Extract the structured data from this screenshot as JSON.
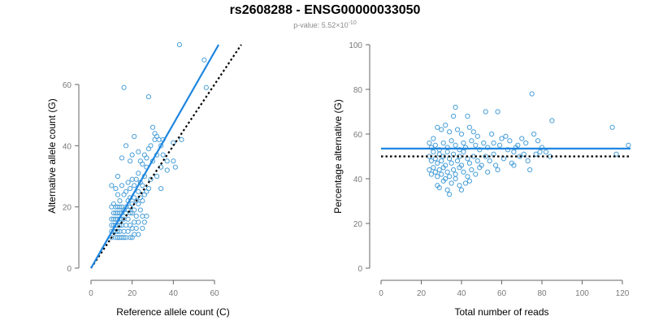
{
  "title": "rs2608288 - ENSG00000033050",
  "subtitle": {
    "text": "p-value: 5.52×10",
    "exponent": "-10"
  },
  "colors": {
    "points": "#4a9fd8",
    "fit_line": "#1f86e0",
    "reference_line": "#000000",
    "axis": "#666666"
  },
  "chart_data": [
    {
      "type": "scatter",
      "xlabel": "Reference allele count (C)",
      "ylabel": "Alternative allele count (G)",
      "xlim": [
        0,
        65
      ],
      "ylim": [
        0,
        72
      ],
      "xticks": [
        0,
        20,
        40,
        60
      ],
      "yticks": [
        0,
        20,
        40,
        60
      ],
      "grid": false,
      "fit_line": {
        "x": [
          0,
          62
        ],
        "y": [
          0,
          73
        ]
      },
      "reference_line": {
        "x": [
          0,
          73
        ],
        "y": [
          0,
          73
        ]
      },
      "points": [
        [
          43,
          73
        ],
        [
          55,
          68
        ],
        [
          16,
          59
        ],
        [
          56,
          59
        ],
        [
          28,
          56
        ],
        [
          30,
          46
        ],
        [
          31,
          44
        ],
        [
          32,
          43
        ],
        [
          31,
          42
        ],
        [
          33,
          42
        ],
        [
          35,
          42
        ],
        [
          21,
          43
        ],
        [
          44,
          42
        ],
        [
          29,
          40
        ],
        [
          40,
          41
        ],
        [
          17,
          40
        ],
        [
          34,
          40
        ],
        [
          28,
          39
        ],
        [
          23,
          38
        ],
        [
          20,
          37
        ],
        [
          26,
          37
        ],
        [
          32,
          37
        ],
        [
          35,
          37
        ],
        [
          27,
          36
        ],
        [
          37,
          35
        ],
        [
          40,
          35
        ],
        [
          15,
          36
        ],
        [
          19,
          35
        ],
        [
          24,
          35
        ],
        [
          30,
          35
        ],
        [
          25,
          34
        ],
        [
          41,
          33
        ],
        [
          27,
          33
        ],
        [
          34,
          33
        ],
        [
          37,
          32
        ],
        [
          23,
          31
        ],
        [
          26,
          30
        ],
        [
          32,
          30
        ],
        [
          20,
          29
        ],
        [
          22,
          29
        ],
        [
          29,
          29
        ],
        [
          13,
          30
        ],
        [
          18,
          28
        ],
        [
          24,
          28
        ],
        [
          34,
          26
        ],
        [
          15,
          27
        ],
        [
          19,
          26
        ],
        [
          21,
          27
        ],
        [
          25,
          27
        ],
        [
          28,
          26
        ],
        [
          10,
          27
        ],
        [
          12,
          26
        ],
        [
          17,
          25
        ],
        [
          23,
          25
        ],
        [
          27,
          25
        ],
        [
          13,
          24
        ],
        [
          16,
          24
        ],
        [
          19,
          23
        ],
        [
          21,
          23
        ],
        [
          24,
          23
        ],
        [
          26,
          24
        ],
        [
          14,
          22
        ],
        [
          18,
          22
        ],
        [
          22,
          22
        ],
        [
          25,
          22
        ],
        [
          11,
          21
        ],
        [
          15,
          20
        ],
        [
          17,
          20
        ],
        [
          19,
          20
        ],
        [
          20,
          21
        ],
        [
          23,
          21
        ],
        [
          10,
          20
        ],
        [
          12,
          20
        ],
        [
          13,
          20
        ],
        [
          14,
          20
        ],
        [
          16,
          19
        ],
        [
          18,
          19
        ],
        [
          21,
          19
        ],
        [
          24,
          19
        ],
        [
          11,
          18
        ],
        [
          12,
          18
        ],
        [
          13,
          18
        ],
        [
          14,
          18
        ],
        [
          15,
          18
        ],
        [
          17,
          18
        ],
        [
          19,
          18
        ],
        [
          20,
          18
        ],
        [
          22,
          17
        ],
        [
          25,
          17
        ],
        [
          27,
          17
        ],
        [
          10,
          16
        ],
        [
          11,
          16
        ],
        [
          12,
          16
        ],
        [
          13,
          16
        ],
        [
          14,
          16
        ],
        [
          15,
          16
        ],
        [
          16,
          16
        ],
        [
          18,
          16
        ],
        [
          21,
          15
        ],
        [
          23,
          15
        ],
        [
          26,
          15
        ],
        [
          10,
          14
        ],
        [
          11,
          14
        ],
        [
          12,
          14
        ],
        [
          13,
          14
        ],
        [
          14,
          14
        ],
        [
          15,
          14
        ],
        [
          17,
          14
        ],
        [
          19,
          14
        ],
        [
          20,
          13
        ],
        [
          22,
          13
        ],
        [
          25,
          13
        ],
        [
          10,
          12
        ],
        [
          11,
          12
        ],
        [
          12,
          12
        ],
        [
          13,
          12
        ],
        [
          14,
          12
        ],
        [
          16,
          12
        ],
        [
          18,
          12
        ],
        [
          21,
          11
        ],
        [
          23,
          11
        ],
        [
          10,
          10
        ],
        [
          12,
          10
        ],
        [
          13,
          10
        ],
        [
          14,
          10
        ],
        [
          15,
          10
        ],
        [
          16,
          10
        ],
        [
          17,
          10
        ],
        [
          19,
          10
        ],
        [
          20,
          10
        ]
      ]
    },
    {
      "type": "scatter",
      "xlabel": "Total number of reads",
      "ylabel": "Percentage alternative (G)",
      "xlim": [
        0,
        124
      ],
      "ylim": [
        0,
        100
      ],
      "xticks": [
        0,
        20,
        40,
        60,
        80,
        100,
        120
      ],
      "yticks": [
        0,
        20,
        40,
        60,
        80,
        100
      ],
      "grid": false,
      "fit_line": {
        "x": [
          0,
          124
        ],
        "y": [
          53.5,
          53.5
        ]
      },
      "reference_line": {
        "x": [
          0,
          124
        ],
        "y": [
          50,
          50
        ]
      },
      "points": [
        [
          75,
          78
        ],
        [
          37,
          72
        ],
        [
          52,
          70
        ],
        [
          58,
          70
        ],
        [
          43,
          68
        ],
        [
          85,
          66
        ],
        [
          115,
          63
        ],
        [
          123,
          55
        ],
        [
          36,
          68
        ],
        [
          28,
          63
        ],
        [
          30,
          62
        ],
        [
          32,
          64
        ],
        [
          34,
          61
        ],
        [
          38,
          62
        ],
        [
          40,
          60
        ],
        [
          44,
          63
        ],
        [
          46,
          61
        ],
        [
          48,
          59
        ],
        [
          55,
          60
        ],
        [
          60,
          58
        ],
        [
          62,
          59
        ],
        [
          64,
          57
        ],
        [
          70,
          58
        ],
        [
          72,
          56
        ],
        [
          76,
          60
        ],
        [
          78,
          57
        ],
        [
          68,
          55
        ],
        [
          66,
          52
        ],
        [
          80,
          54
        ],
        [
          82,
          52
        ],
        [
          24,
          56
        ],
        [
          25,
          54
        ],
        [
          26,
          58
        ],
        [
          27,
          55
        ],
        [
          29,
          53
        ],
        [
          31,
          56
        ],
        [
          33,
          54
        ],
        [
          35,
          57
        ],
        [
          37,
          55
        ],
        [
          39,
          53
        ],
        [
          41,
          56
        ],
        [
          42,
          54
        ],
        [
          45,
          57
        ],
        [
          47,
          55
        ],
        [
          49,
          53
        ],
        [
          51,
          56
        ],
        [
          53,
          54
        ],
        [
          56,
          56
        ],
        [
          59,
          55
        ],
        [
          63,
          53
        ],
        [
          24,
          50
        ],
        [
          25,
          48
        ],
        [
          26,
          52
        ],
        [
          27,
          49
        ],
        [
          28,
          47
        ],
        [
          29,
          51
        ],
        [
          30,
          48
        ],
        [
          31,
          50
        ],
        [
          32,
          46
        ],
        [
          33,
          52
        ],
        [
          34,
          49
        ],
        [
          35,
          47
        ],
        [
          36,
          51
        ],
        [
          38,
          48
        ],
        [
          39,
          50
        ],
        [
          40,
          46
        ],
        [
          41,
          52
        ],
        [
          43,
          49
        ],
        [
          44,
          47
        ],
        [
          46,
          50
        ],
        [
          48,
          48
        ],
        [
          50,
          46
        ],
        [
          52,
          50
        ],
        [
          54,
          48
        ],
        [
          57,
          46
        ],
        [
          61,
          49
        ],
        [
          65,
          47
        ],
        [
          69,
          50
        ],
        [
          73,
          48
        ],
        [
          77,
          51
        ],
        [
          24,
          44
        ],
        [
          25,
          42
        ],
        [
          26,
          45
        ],
        [
          27,
          43
        ],
        [
          28,
          41
        ],
        [
          29,
          44
        ],
        [
          30,
          42
        ],
        [
          31,
          45
        ],
        [
          32,
          40
        ],
        [
          33,
          43
        ],
        [
          34,
          41
        ],
        [
          36,
          44
        ],
        [
          37,
          42
        ],
        [
          39,
          45
        ],
        [
          41,
          43
        ],
        [
          43,
          41
        ],
        [
          45,
          44
        ],
        [
          47,
          42
        ],
        [
          49,
          45
        ],
        [
          53,
          43
        ],
        [
          58,
          44
        ],
        [
          66,
          46
        ],
        [
          74,
          44
        ],
        [
          28,
          37
        ],
        [
          29,
          36
        ],
        [
          33,
          35
        ],
        [
          34,
          33
        ],
        [
          39,
          37
        ],
        [
          40,
          35
        ],
        [
          42,
          38
        ],
        [
          31,
          39
        ],
        [
          35,
          38
        ],
        [
          37,
          40
        ],
        [
          44,
          39
        ],
        [
          117,
          51
        ],
        [
          84,
          50
        ],
        [
          56,
          51
        ],
        [
          71,
          51
        ],
        [
          79,
          52
        ],
        [
          67,
          54
        ]
      ]
    }
  ]
}
